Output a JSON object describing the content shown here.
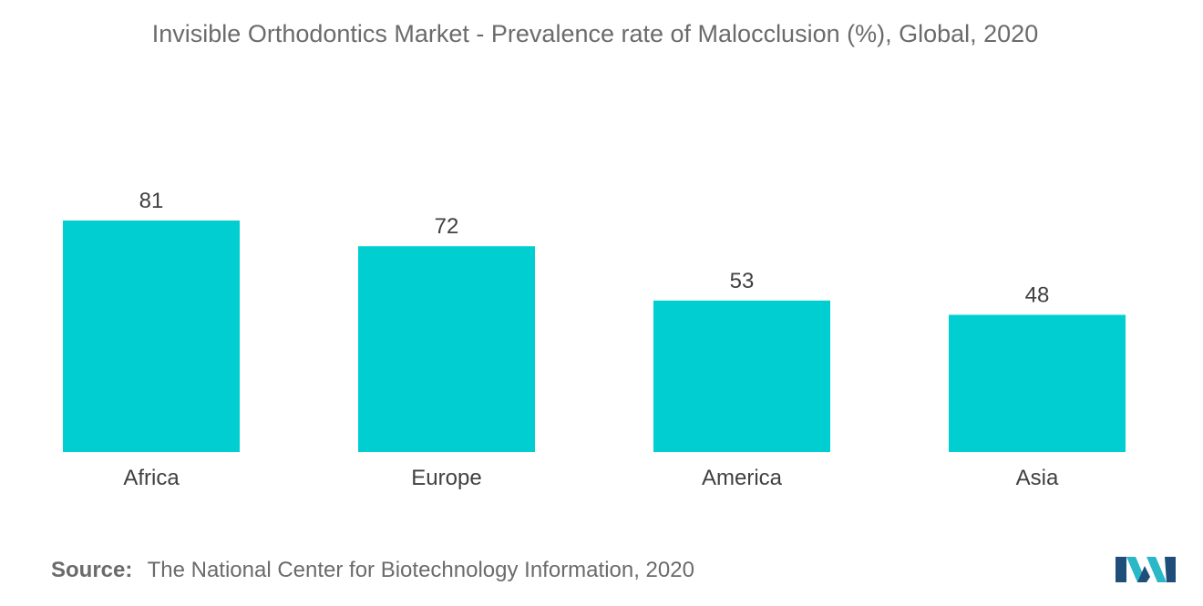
{
  "chart_data": {
    "type": "bar",
    "title": "Invisible Orthodontics Market - Prevalence rate of Malocclusion (%), Global, 2020",
    "categories": [
      "Africa",
      "Europe",
      "America",
      "Asia"
    ],
    "values": [
      81,
      72,
      53,
      48
    ],
    "data_labels": [
      "81",
      "72",
      "53",
      "48"
    ],
    "xlabel": "",
    "ylabel": "",
    "ylim": [
      0,
      81
    ],
    "grid": false,
    "legend": "none",
    "bar_color": "#00ced1"
  },
  "source": {
    "label": "Source:",
    "text": "The National Center for Biotechnology Information, 2020"
  },
  "colors": {
    "logo_blue": "#1e4e79",
    "logo_teal": "#2ab7c6"
  }
}
